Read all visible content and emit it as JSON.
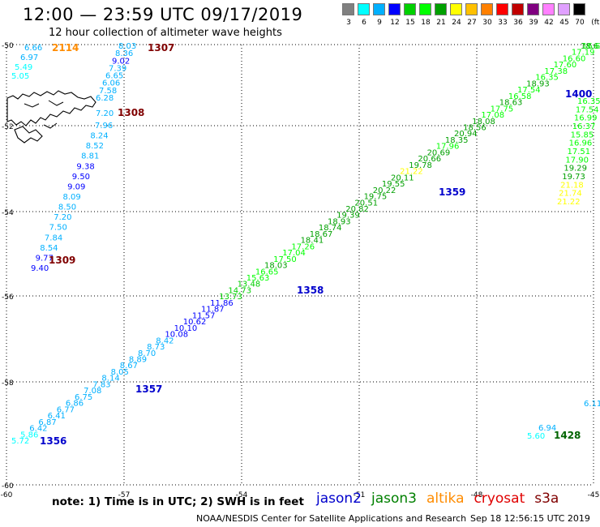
{
  "header": {
    "title": "12:00 — 23:59 UTC 09/17/2019",
    "subtitle": "12 hour collection of altimeter wave heights"
  },
  "legend": {
    "unit": "(ft)",
    "colors": [
      "#808080",
      "#00ffff",
      "#00b0ff",
      "#0000ff",
      "#00d000",
      "#00ff00",
      "#00a000",
      "#ffff00",
      "#ffc000",
      "#ff8000",
      "#ff0000",
      "#c00000",
      "#800080",
      "#ff80ff",
      "#e0a0ff",
      "#000000"
    ],
    "labels": [
      "3",
      "6",
      "9",
      "12",
      "15",
      "18",
      "21",
      "24",
      "27",
      "30",
      "33",
      "36",
      "39",
      "42",
      "45",
      "70"
    ]
  },
  "axes": {
    "lat_labels": [
      "-50",
      "-52",
      "-54",
      "-56",
      "-58",
      "-60"
    ],
    "lon_labels": [
      "-60",
      "-57",
      "-54",
      "-51",
      "-48",
      "-45"
    ]
  },
  "passes": [
    {
      "label": "2114",
      "color": "#ff8c00"
    },
    {
      "label": "1307",
      "color": "#800000"
    },
    {
      "label": "1308",
      "color": "#800000"
    },
    {
      "label": "1309",
      "color": "#800000"
    },
    {
      "label": "1400",
      "color": "#0000cc"
    },
    {
      "label": "1359",
      "color": "#0000cc"
    },
    {
      "label": "1358",
      "color": "#0000cc"
    },
    {
      "label": "1357",
      "color": "#0000cc"
    },
    {
      "label": "1356",
      "color": "#0000cc"
    },
    {
      "label": "1428",
      "color": "#006400"
    }
  ],
  "track_a": [
    "6.66",
    "6.97",
    "5.49",
    "5.05"
  ],
  "track_b": [
    "8.03",
    "8.36",
    "9.02",
    "7.39",
    "6.65",
    "6.06",
    "7.58",
    "6.28",
    "7.20",
    "7.96",
    "8.24",
    "8.52",
    "8.81",
    "9.38",
    "9.50",
    "9.09",
    "8.09",
    "8.50",
    "7.20",
    "7.50",
    "7.84",
    "8.54",
    "9.77",
    "9.40"
  ],
  "track_c": [
    "5.72",
    "5.86",
    "6.42",
    "6.87",
    "6.41",
    "6.77",
    "6.86",
    "6.75",
    "7.08",
    "7.83",
    "8.14",
    "8.05",
    "8.67",
    "8.89",
    "8.70",
    "8.73",
    "8.42",
    "10.08",
    "10.10",
    "10.62",
    "11.57",
    "11.87",
    "11.86",
    "13.73",
    "14.73",
    "13.48",
    "15.63",
    "16.65",
    "18.03",
    "17.50",
    "17.04",
    "17.26",
    "18.41",
    "18.67",
    "18.74",
    "18.93",
    "19.39",
    "20.82",
    "20.51",
    "19.75",
    "20.22",
    "19.55",
    "20.11",
    "21.22",
    "19.78",
    "20.66",
    "20.69",
    "17.96",
    "18.35",
    "20.94",
    "18.56",
    "18.08",
    "17.08",
    "17.75",
    "18.63",
    "16.58",
    "17.54",
    "18.93",
    "16.35",
    "17.38",
    "17.60",
    "16.60",
    "17.19",
    "18.61"
  ],
  "track_d": [
    "16.6",
    "16.35",
    "17.54",
    "16.99",
    "16.37",
    "15.85",
    "16.96",
    "17.51",
    "17.90",
    "19.29",
    "19.73",
    "21.18",
    "21.74",
    "21.22"
  ],
  "track_e": [
    "6.11",
    "6.94",
    "5.60"
  ],
  "footer": {
    "note": "note:  1) Time is in UTC;  2) SWH is in feet",
    "satellites": [
      {
        "name": "jason2",
        "color": "#0000cc"
      },
      {
        "name": "jason3",
        "color": "#008000"
      },
      {
        "name": "altika",
        "color": "#ff8c00"
      },
      {
        "name": "cryosat",
        "color": "#e00000"
      },
      {
        "name": "s3a",
        "color": "#800000"
      }
    ],
    "credit": "NOAA/NESDIS Center for Satellite Applications and Research",
    "timestamp": "Sep 18 12:56:15 UTC 2019"
  }
}
